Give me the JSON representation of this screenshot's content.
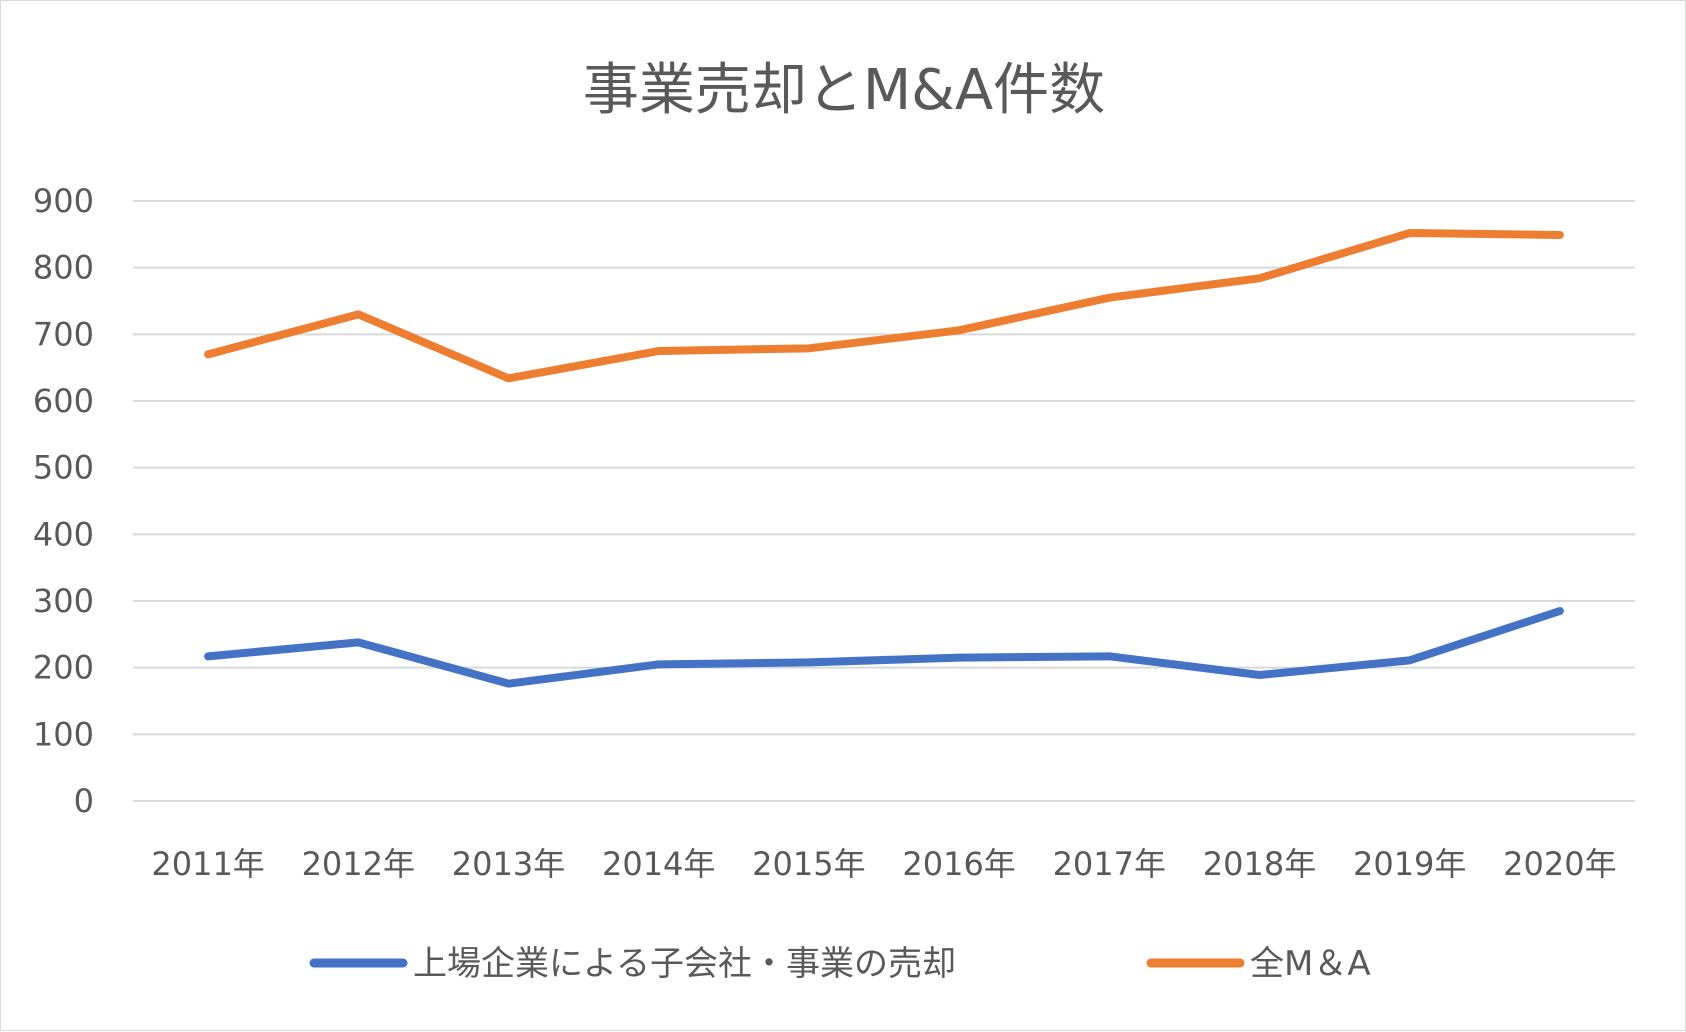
{
  "chart_data": {
    "type": "line",
    "title": "事業売却とM&A件数",
    "categories": [
      "2011年",
      "2012年",
      "2013年",
      "2014年",
      "2015年",
      "2016年",
      "2017年",
      "2018年",
      "2019年",
      "2020年"
    ],
    "series": [
      {
        "name": "上場企業による子会社・事業の売却",
        "color": "#4472c4",
        "values": [
          217,
          238,
          176,
          205,
          208,
          215,
          217,
          189,
          211,
          285
        ]
      },
      {
        "name": "全M＆A",
        "color": "#ed7d31",
        "values": [
          670,
          730,
          634,
          675,
          679,
          706,
          755,
          784,
          852,
          849
        ]
      }
    ],
    "ylim": [
      0,
      900
    ],
    "yticks": [
      "900",
      "800",
      "700",
      "600",
      "500",
      "400",
      "300",
      "200",
      "100",
      "0"
    ],
    "grid": true,
    "legend_position": "bottom"
  }
}
